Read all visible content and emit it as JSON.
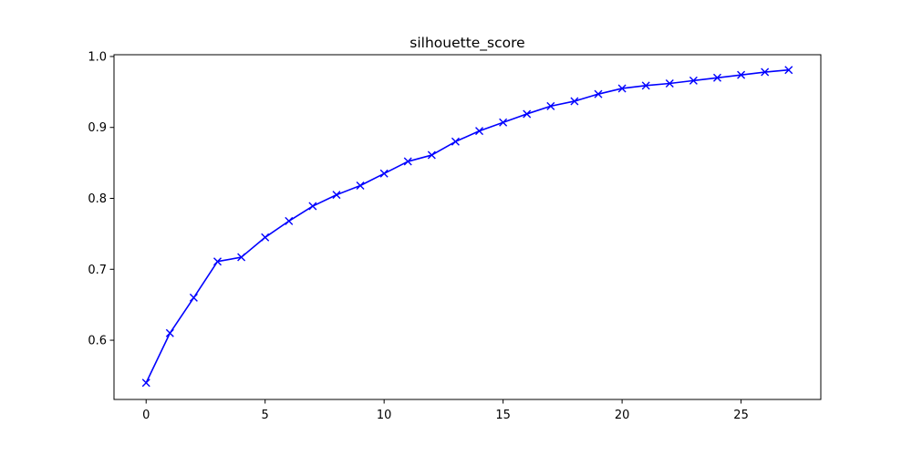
{
  "chart_data": {
    "type": "line",
    "title": "silhouette_score",
    "xlabel": "",
    "ylabel": "",
    "xlim": [
      -1.35,
      28.35
    ],
    "ylim": [
      0.5165,
      1.0025
    ],
    "xticks": [
      0,
      5,
      10,
      15,
      20,
      25
    ],
    "yticks": [
      0.6,
      0.7,
      0.8,
      0.9,
      1.0
    ],
    "ytick_labels": [
      "0.6",
      "0.7",
      "0.8",
      "0.9",
      "1.0"
    ],
    "grid": false,
    "legend": "none",
    "series": [
      {
        "color": "#0000ff",
        "marker": "x",
        "x": [
          0,
          1,
          2,
          3,
          4,
          5,
          6,
          7,
          8,
          9,
          10,
          11,
          12,
          13,
          14,
          15,
          16,
          17,
          18,
          19,
          20,
          21,
          22,
          23,
          24,
          25,
          26,
          27
        ],
        "values": [
          0.54,
          0.61,
          0.66,
          0.711,
          0.717,
          0.745,
          0.768,
          0.789,
          0.805,
          0.818,
          0.835,
          0.852,
          0.861,
          0.88,
          0.895,
          0.907,
          0.919,
          0.93,
          0.937,
          0.947,
          0.955,
          0.959,
          0.962,
          0.966,
          0.97,
          0.974,
          0.978,
          0.981
        ]
      }
    ]
  }
}
